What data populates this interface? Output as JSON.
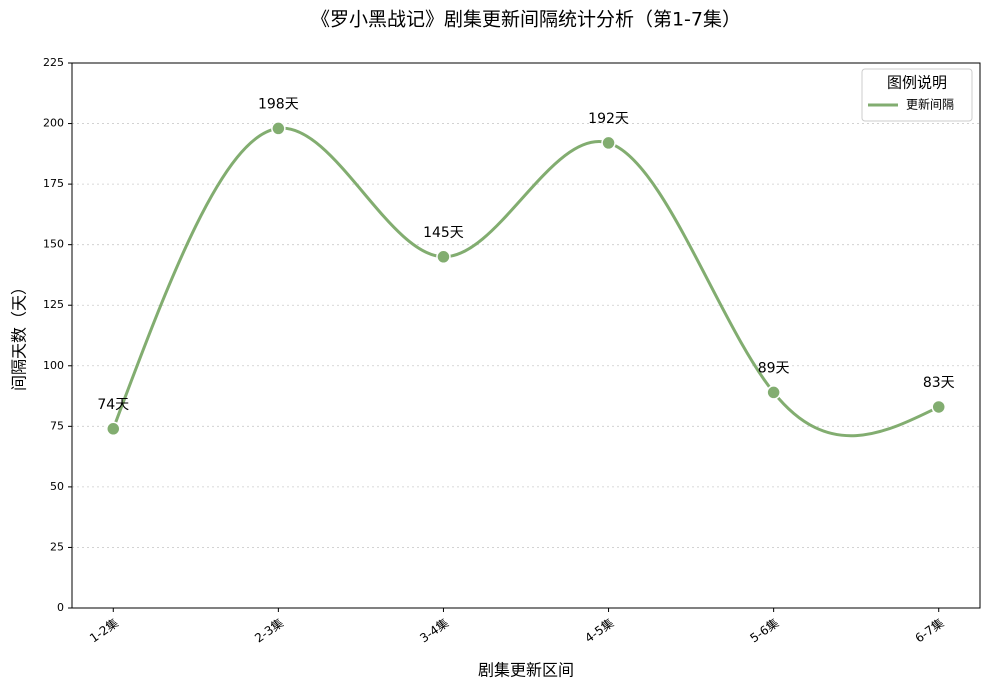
{
  "chart_data": {
    "type": "line",
    "title": "《罗小黑战记》剧集更新间隔统计分析（第1-7集）",
    "x_label": "剧集更新区间",
    "y_label": "间隔天数（天）",
    "categories": [
      "1-2集",
      "2-3集",
      "3-4集",
      "4-5集",
      "5-6集",
      "6-7集"
    ],
    "series": [
      {
        "name": "更新间隔",
        "color": "#82ad70",
        "values": [
          74,
          198,
          145,
          192,
          89,
          83
        ],
        "value_labels": [
          "74天",
          "198天",
          "145天",
          "192天",
          "89天",
          "83天"
        ]
      }
    ],
    "legend_title": "图例说明",
    "legend": "upper right",
    "smooth": true,
    "grid": true,
    "ylim": [
      0,
      225
    ],
    "yticks": [
      0,
      25,
      50,
      75,
      100,
      125,
      150,
      175,
      200,
      225
    ]
  }
}
